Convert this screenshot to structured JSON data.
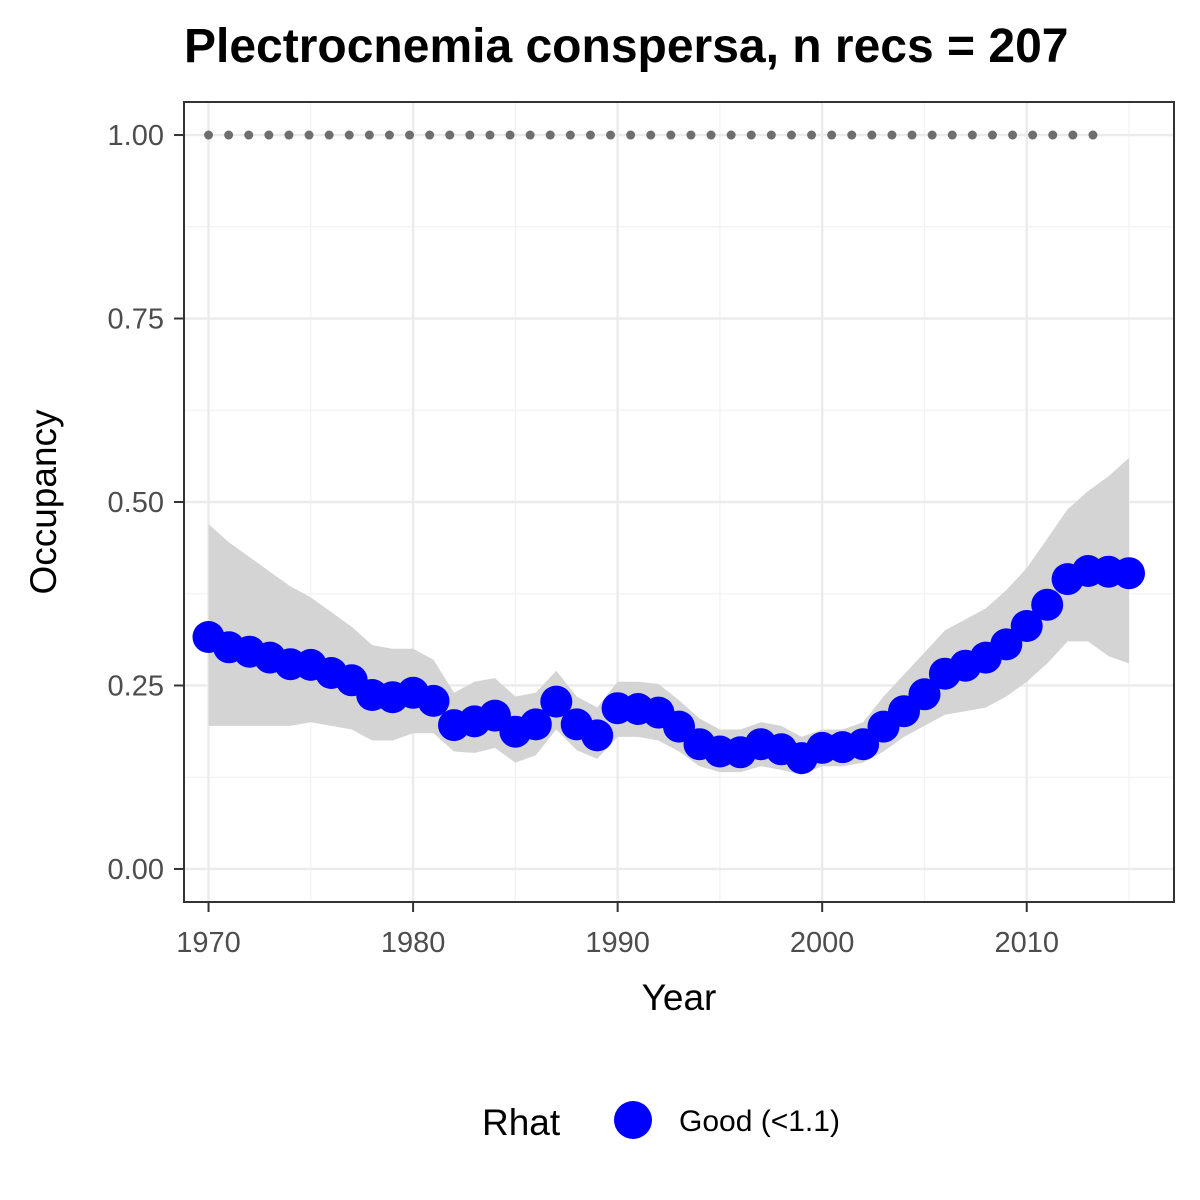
{
  "chart_data": {
    "type": "line",
    "title": "Plectrocnemia conspersa, n recs = 207",
    "xlabel": "Year",
    "ylabel": "Occupancy",
    "xlim": [
      1968.8,
      2017.2
    ],
    "ylim": [
      -0.045,
      1.045
    ],
    "x_ticks": [
      1970,
      1980,
      1990,
      2000,
      2010
    ],
    "x_tick_labels": [
      "1970",
      "1980",
      "1990",
      "2000",
      "2010"
    ],
    "y_ticks": [
      0,
      0.25,
      0.5,
      0.75,
      1.0
    ],
    "y_tick_labels": [
      "0.00",
      "0.25",
      "0.50",
      "0.75",
      "1.00"
    ],
    "grid": true,
    "legend": {
      "title": "Rhat",
      "position": "bottom",
      "entries": [
        {
          "label": "Good (<1.1)",
          "color": "#0000ff"
        }
      ]
    },
    "colors": {
      "points": "#0000ff",
      "ribbon": "#d4d4d4",
      "reference": "#6e6e6e"
    },
    "x": [
      1970,
      1971,
      1972,
      1973,
      1974,
      1975,
      1976,
      1977,
      1978,
      1979,
      1980,
      1981,
      1982,
      1983,
      1984,
      1985,
      1986,
      1987,
      1988,
      1989,
      1990,
      1991,
      1992,
      1993,
      1994,
      1995,
      1996,
      1997,
      1998,
      1999,
      2000,
      2001,
      2002,
      2003,
      2004,
      2005,
      2006,
      2007,
      2008,
      2009,
      2010,
      2011,
      2012,
      2013,
      2014,
      2015
    ],
    "series": [
      {
        "values": [
          0.316,
          0.302,
          0.296,
          0.288,
          0.279,
          0.278,
          0.267,
          0.257,
          0.237,
          0.234,
          0.24,
          0.229,
          0.196,
          0.201,
          0.209,
          0.187,
          0.197,
          0.228,
          0.197,
          0.182,
          0.219,
          0.218,
          0.213,
          0.194,
          0.17,
          0.16,
          0.159,
          0.17,
          0.163,
          0.151,
          0.165,
          0.166,
          0.17,
          0.194,
          0.215,
          0.238,
          0.266,
          0.277,
          0.288,
          0.306,
          0.331,
          0.36,
          0.395,
          0.406,
          0.405,
          0.403
        ],
        "lower": [
          0.195,
          0.195,
          0.195,
          0.195,
          0.195,
          0.2,
          0.195,
          0.19,
          0.175,
          0.175,
          0.185,
          0.185,
          0.16,
          0.158,
          0.165,
          0.145,
          0.155,
          0.19,
          0.162,
          0.15,
          0.18,
          0.18,
          0.175,
          0.16,
          0.14,
          0.132,
          0.132,
          0.14,
          0.135,
          0.128,
          0.14,
          0.14,
          0.145,
          0.16,
          0.18,
          0.195,
          0.21,
          0.215,
          0.22,
          0.235,
          0.255,
          0.28,
          0.31,
          0.31,
          0.29,
          0.28
        ],
        "upper": [
          0.47,
          0.445,
          0.425,
          0.405,
          0.385,
          0.37,
          0.35,
          0.33,
          0.305,
          0.3,
          0.3,
          0.285,
          0.24,
          0.255,
          0.26,
          0.235,
          0.24,
          0.27,
          0.235,
          0.22,
          0.255,
          0.255,
          0.252,
          0.23,
          0.205,
          0.19,
          0.19,
          0.2,
          0.195,
          0.18,
          0.19,
          0.19,
          0.2,
          0.235,
          0.265,
          0.295,
          0.325,
          0.34,
          0.355,
          0.38,
          0.41,
          0.45,
          0.49,
          0.515,
          0.535,
          0.56
        ]
      }
    ],
    "reference_line": {
      "x_start": 1970,
      "x_end": 2014,
      "y": 1.0
    }
  }
}
